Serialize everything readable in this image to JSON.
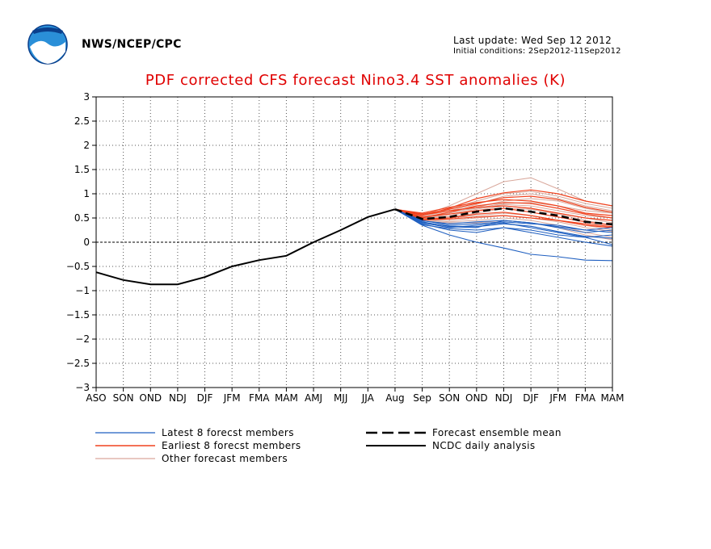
{
  "header": {
    "agency": "NWS/NCEP/CPC",
    "last_update": "Last update: Wed Sep 12 2012",
    "initial_conditions": "Initial conditions: 2Sep2012-11Sep2012",
    "logo_text": "NOAA"
  },
  "colors": {
    "latest": "#1f5fc0",
    "earliest": "#f0421e",
    "other": "#d9a89c",
    "mean": "#000000",
    "title": "#e00000"
  },
  "chart_data": {
    "type": "line",
    "title": "PDF corrected CFS forecast Nino3.4 SST anomalies (K)",
    "xlabel": "",
    "ylabel": "",
    "categories": [
      "ASO",
      "SON",
      "OND",
      "NDJ",
      "DJF",
      "JFM",
      "FMA",
      "MAM",
      "AMJ",
      "MJJ",
      "JJA",
      "Aug",
      "Sep",
      "SON",
      "OND",
      "NDJ",
      "DJF",
      "JFM",
      "FMA",
      "MAM"
    ],
    "ylim": [
      -3,
      3
    ],
    "yticks": [
      3,
      2.5,
      2,
      1.5,
      1,
      0.5,
      0,
      -0.5,
      -1,
      -1.5,
      -2,
      -2.5,
      -3
    ],
    "ytick_labels": [
      "3",
      "2.5",
      "2",
      "1.5",
      "1",
      "0.5",
      "0",
      "−0.5",
      "−1",
      "−1.5",
      "−2",
      "−2.5",
      "−3"
    ],
    "grid": true,
    "zero_line": true,
    "legend": [
      {
        "label": "Latest 8 forecst members",
        "style": "latest"
      },
      {
        "label": "Earliest 8 forecst members",
        "style": "earliest"
      },
      {
        "label": "Other forecast members",
        "style": "other"
      },
      {
        "label": "Forecast ensemble mean",
        "style": "mean-dashed"
      },
      {
        "label": "NCDC daily analysis",
        "style": "analysis"
      }
    ],
    "analysis": {
      "x": [
        "ASO",
        "SON",
        "OND",
        "NDJ",
        "DJF",
        "JFM",
        "FMA",
        "MAM",
        "AMJ",
        "MJJ",
        "JJA",
        "Aug"
      ],
      "values": [
        -0.62,
        -0.78,
        -0.87,
        -0.87,
        -0.72,
        -0.5,
        -0.37,
        -0.28,
        0.0,
        0.25,
        0.52,
        0.68
      ]
    },
    "ensemble_mean": {
      "x": [
        "Aug",
        "Sep",
        "SON",
        "OND",
        "NDJ",
        "DJF",
        "JFM",
        "FMA",
        "MAM"
      ],
      "values": [
        0.68,
        0.48,
        0.52,
        0.63,
        0.7,
        0.63,
        0.55,
        0.42,
        0.37
      ]
    },
    "member_x": [
      "Aug",
      "Sep",
      "SON",
      "OND",
      "NDJ",
      "DJF",
      "JFM",
      "FMA",
      "MAM"
    ],
    "latest_members": [
      [
        0.68,
        0.42,
        0.32,
        0.3,
        0.45,
        0.4,
        0.3,
        0.2,
        0.25
      ],
      [
        0.68,
        0.45,
        0.35,
        0.38,
        0.42,
        0.38,
        0.35,
        0.25,
        0.2
      ],
      [
        0.68,
        0.38,
        0.25,
        0.2,
        0.3,
        0.25,
        0.15,
        0.1,
        0.15
      ],
      [
        0.68,
        0.35,
        0.15,
        0.0,
        -0.12,
        -0.25,
        -0.3,
        -0.37,
        -0.38
      ],
      [
        0.68,
        0.4,
        0.3,
        0.35,
        0.4,
        0.3,
        0.2,
        0.1,
        -0.05
      ],
      [
        0.68,
        0.44,
        0.38,
        0.42,
        0.45,
        0.4,
        0.32,
        0.25,
        0.3
      ],
      [
        0.68,
        0.36,
        0.28,
        0.25,
        0.3,
        0.2,
        0.1,
        0.0,
        -0.08
      ],
      [
        0.68,
        0.41,
        0.33,
        0.32,
        0.38,
        0.33,
        0.22,
        0.12,
        0.08
      ]
    ],
    "earliest_members": [
      [
        0.68,
        0.55,
        0.7,
        0.9,
        1.02,
        1.08,
        1.0,
        0.85,
        0.75
      ],
      [
        0.68,
        0.6,
        0.72,
        0.82,
        0.88,
        0.85,
        0.75,
        0.6,
        0.55
      ],
      [
        0.68,
        0.5,
        0.62,
        0.75,
        0.82,
        0.8,
        0.7,
        0.58,
        0.5
      ],
      [
        0.68,
        0.52,
        0.58,
        0.65,
        0.7,
        0.62,
        0.52,
        0.42,
        0.35
      ],
      [
        0.68,
        0.56,
        0.65,
        0.72,
        0.75,
        0.7,
        0.6,
        0.5,
        0.45
      ],
      [
        0.68,
        0.48,
        0.5,
        0.58,
        0.62,
        0.55,
        0.45,
        0.35,
        0.3
      ],
      [
        0.68,
        0.58,
        0.68,
        0.8,
        0.92,
        0.95,
        0.88,
        0.72,
        0.62
      ],
      [
        0.68,
        0.46,
        0.48,
        0.52,
        0.55,
        0.5,
        0.45,
        0.38,
        0.32
      ]
    ],
    "other_members": [
      [
        0.68,
        0.55,
        0.75,
        1.0,
        1.25,
        1.33,
        1.1,
        0.85,
        0.75
      ],
      [
        0.68,
        0.52,
        0.68,
        0.85,
        1.0,
        1.05,
        0.95,
        0.8,
        0.7
      ],
      [
        0.68,
        0.5,
        0.6,
        0.72,
        0.85,
        0.9,
        0.85,
        0.7,
        0.6
      ],
      [
        0.68,
        0.48,
        0.55,
        0.65,
        0.75,
        0.7,
        0.6,
        0.5,
        0.4
      ],
      [
        0.68,
        0.45,
        0.5,
        0.55,
        0.6,
        0.55,
        0.45,
        0.35,
        0.25
      ],
      [
        0.68,
        0.47,
        0.45,
        0.5,
        0.55,
        0.5,
        0.42,
        0.3,
        0.22
      ],
      [
        0.68,
        0.5,
        0.52,
        0.6,
        0.7,
        0.68,
        0.58,
        0.45,
        0.35
      ],
      [
        0.68,
        0.53,
        0.65,
        0.78,
        0.95,
        1.0,
        0.9,
        0.75,
        0.65
      ],
      [
        0.68,
        0.46,
        0.42,
        0.45,
        0.5,
        0.45,
        0.35,
        0.2,
        0.1
      ],
      [
        0.68,
        0.49,
        0.58,
        0.68,
        0.78,
        0.75,
        0.65,
        0.55,
        0.5
      ],
      [
        0.68,
        0.44,
        0.4,
        0.4,
        0.45,
        0.4,
        0.3,
        0.15,
        0.05
      ],
      [
        0.68,
        0.51,
        0.62,
        0.7,
        0.8,
        0.82,
        0.75,
        0.65,
        0.6
      ]
    ]
  }
}
